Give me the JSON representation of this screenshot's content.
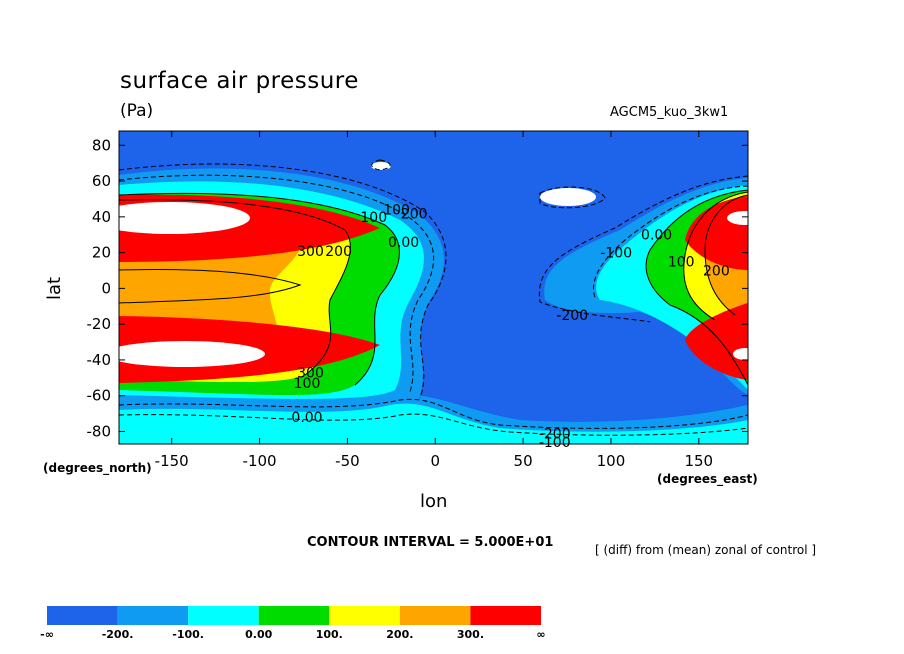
{
  "chart_data": {
    "type": "heatmap",
    "title": "surface air pressure",
    "units": "(Pa)",
    "run_label": "AGCM5_kuo_3kw1",
    "xlabel": "lon",
    "ylabel": "lat",
    "xlabel_units": "(degrees_east)",
    "ylabel_units": "(degrees_north)",
    "xlim": [
      -180,
      178
    ],
    "ylim": [
      -87,
      88
    ],
    "x_ticks": [
      -150,
      -100,
      -50,
      0,
      50,
      100,
      150
    ],
    "y_ticks": [
      80,
      60,
      40,
      20,
      0,
      -20,
      -40,
      -60,
      -80
    ],
    "contour_interval_text": "CONTOUR INTERVAL = 5.000E+01",
    "footnote": "[ (diff) from (mean) zonal of control ]",
    "contour_labels": [
      {
        "text": "100",
        "lon": -35,
        "lat": 40
      },
      {
        "text": "100",
        "lon": -22,
        "lat": 44
      },
      {
        "text": "200",
        "lon": -12,
        "lat": 42
      },
      {
        "text": "300",
        "lon": -71,
        "lat": 21
      },
      {
        "text": "200",
        "lon": -55,
        "lat": 21
      },
      {
        "text": "0.00",
        "lon": -18,
        "lat": 26
      },
      {
        "text": "300",
        "lon": -71,
        "lat": -47
      },
      {
        "text": "100",
        "lon": -73,
        "lat": -53
      },
      {
        "text": "0.00",
        "lon": -73,
        "lat": -72
      },
      {
        "text": "-100",
        "lon": 103,
        "lat": 20
      },
      {
        "text": "0.00",
        "lon": 126,
        "lat": 30
      },
      {
        "text": "100",
        "lon": 140,
        "lat": 15
      },
      {
        "text": "200",
        "lon": 160,
        "lat": 10
      },
      {
        "text": "-200",
        "lon": 78,
        "lat": -15
      },
      {
        "text": "-200",
        "lon": 68,
        "lat": -81
      },
      {
        "text": "-100",
        "lon": 68,
        "lat": -86
      }
    ],
    "colorbar": {
      "levels": [
        "-∞",
        "-200.",
        "-100.",
        "0.00",
        "100.",
        "200.",
        "300.",
        "∞"
      ],
      "colors": [
        "#1e64eb",
        "#0f9bf2",
        "#00ffff",
        "#00dc00",
        "#ffff00",
        "#ffa500",
        "#ff0000"
      ]
    },
    "zero_line_label": "0"
  }
}
